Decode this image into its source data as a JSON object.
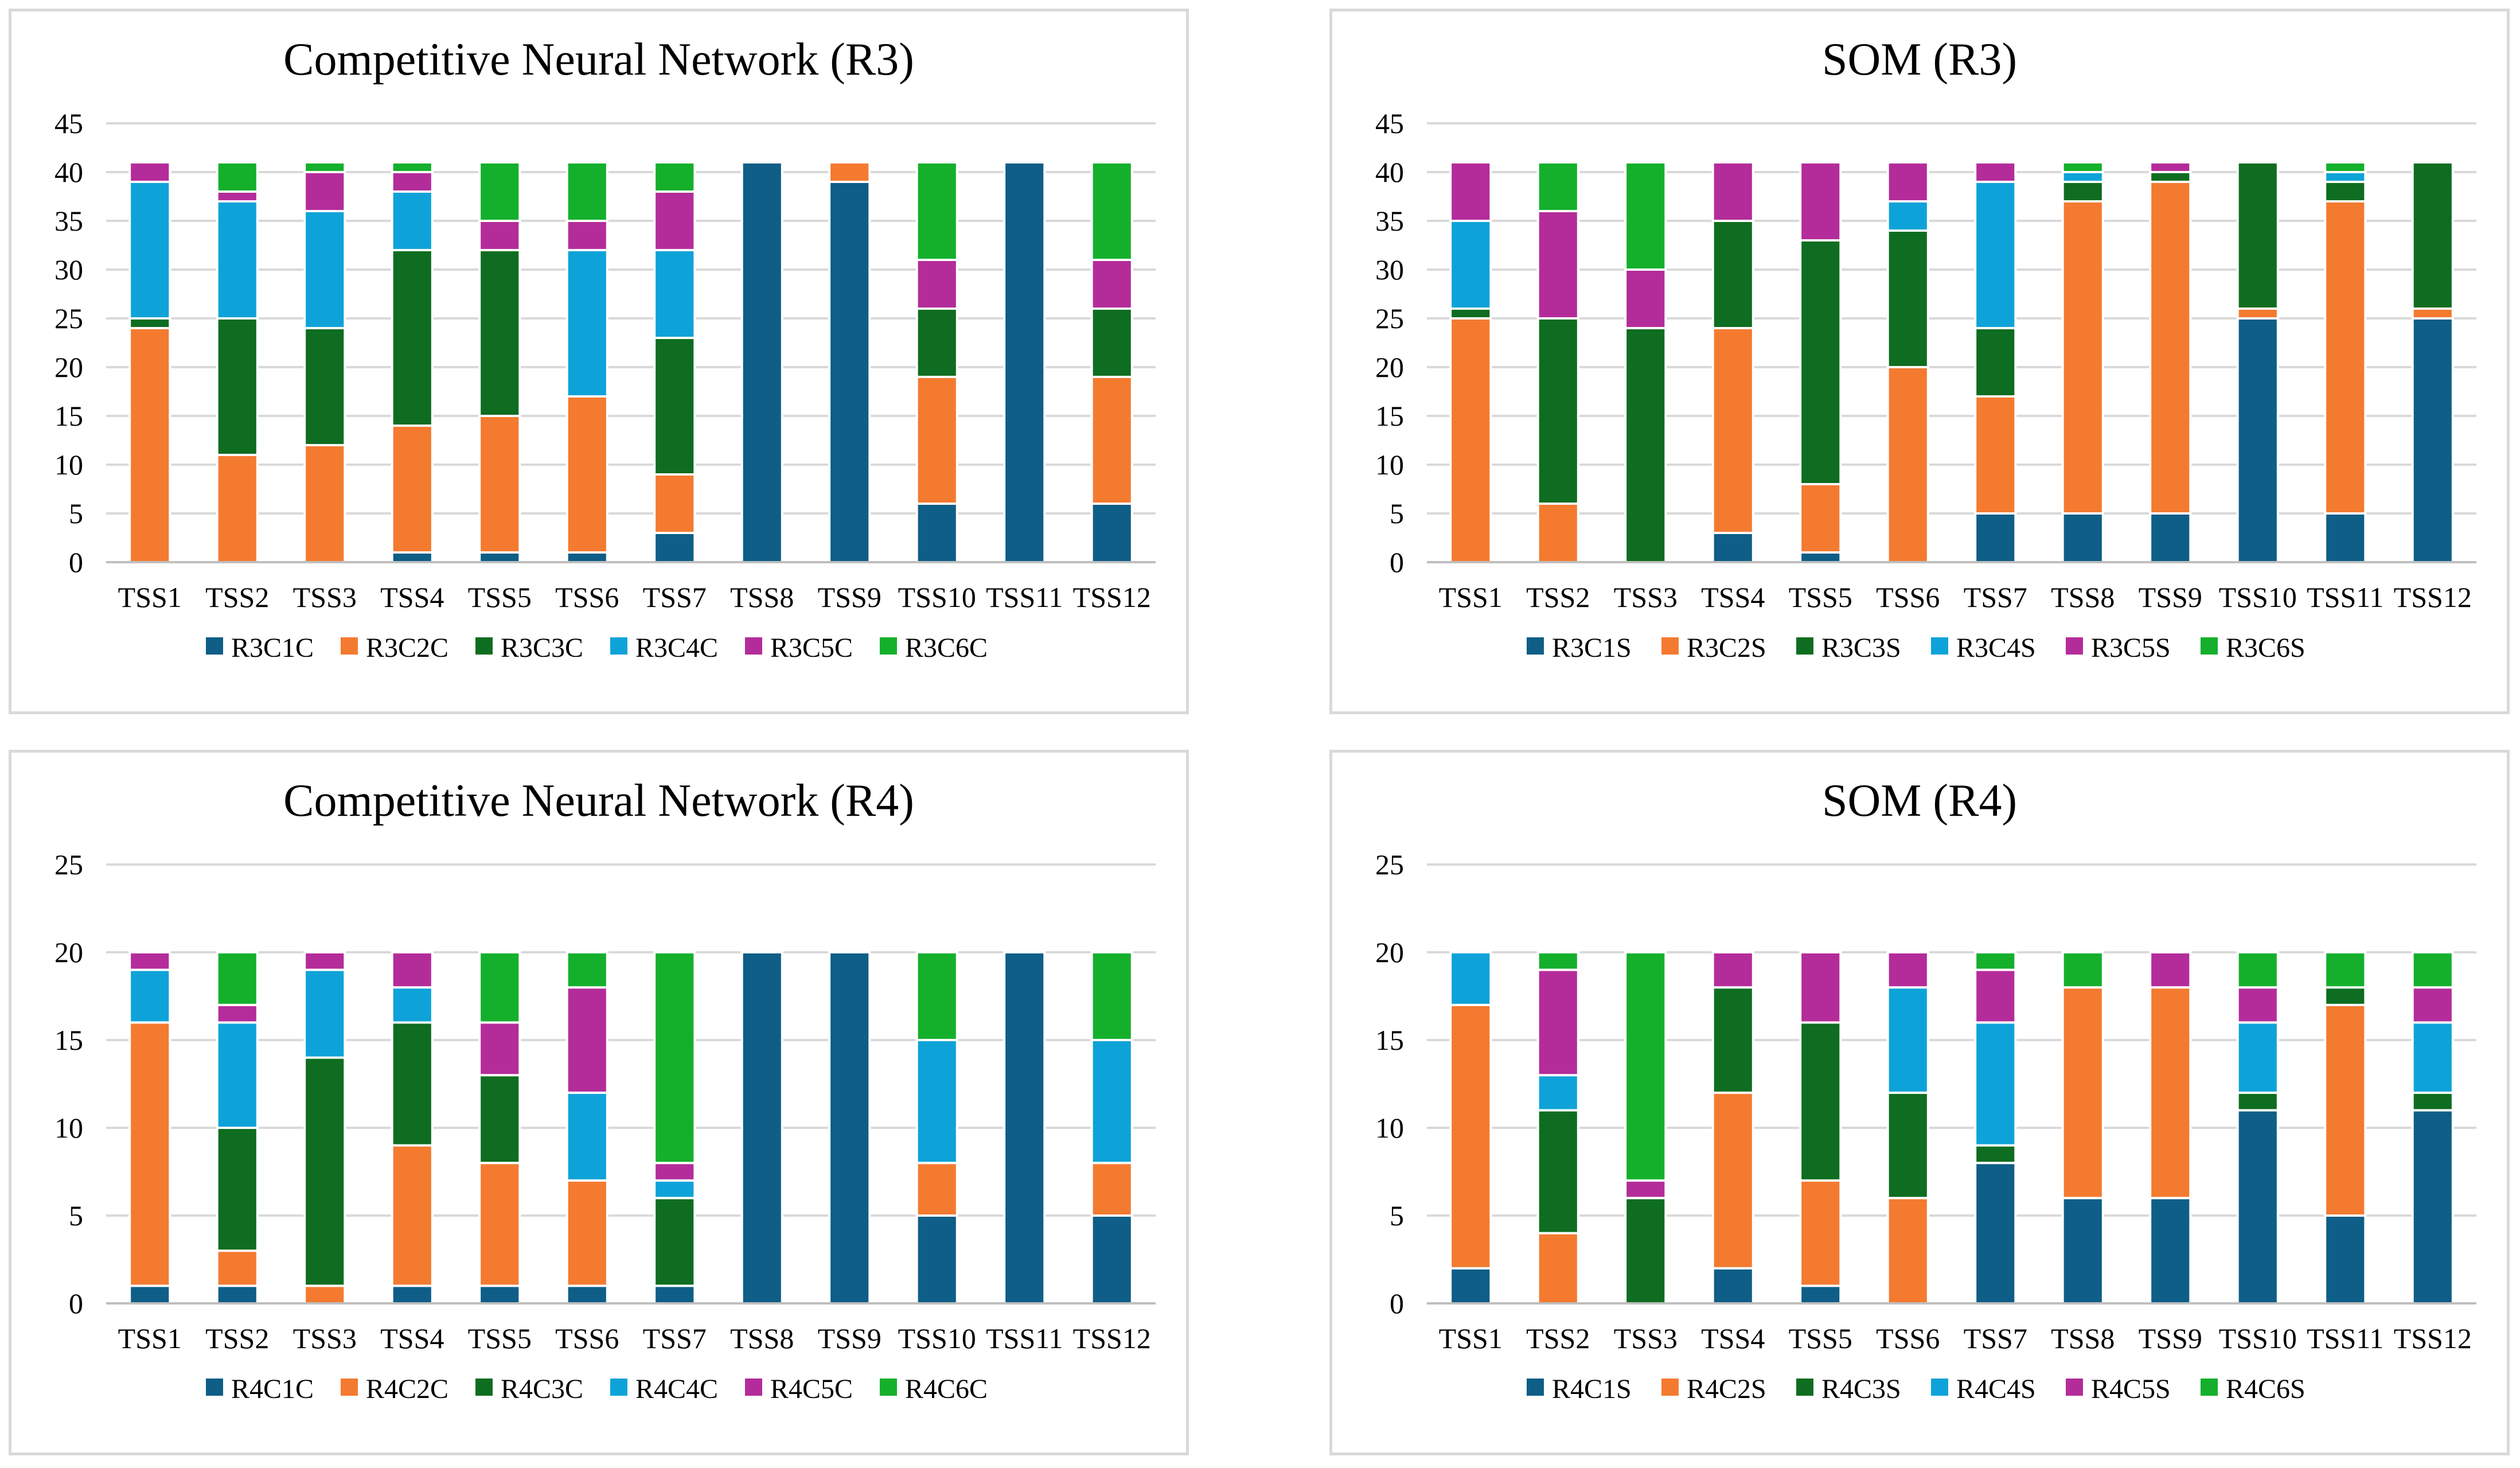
{
  "chart_data": [
    {
      "type": "bar",
      "stacked": true,
      "title": "Competitive Neural Network (R3)",
      "categories": [
        "TSS1",
        "TSS2",
        "TSS3",
        "TSS4",
        "TSS5",
        "TSS6",
        "TSS7",
        "TSS8",
        "TSS9",
        "TSS10",
        "TSS11",
        "TSS12"
      ],
      "ylim": [
        0,
        45
      ],
      "yticks": [
        0,
        5,
        10,
        15,
        20,
        25,
        30,
        35,
        40,
        45
      ],
      "grid": true,
      "legend_position": "bottom",
      "series": [
        {
          "name": "R3C1C",
          "color": "#0e5e87",
          "values": [
            0,
            0,
            0,
            1,
            1,
            1,
            3,
            41,
            39,
            6,
            41,
            6
          ]
        },
        {
          "name": "R3C2C",
          "color": "#f47a30",
          "values": [
            24,
            11,
            12,
            13,
            14,
            16,
            6,
            0,
            2,
            13,
            0,
            13
          ]
        },
        {
          "name": "R3C3C",
          "color": "#0e6d20",
          "values": [
            1,
            14,
            12,
            18,
            17,
            0,
            14,
            0,
            0,
            7,
            0,
            7
          ]
        },
        {
          "name": "R3C4C",
          "color": "#0ea3d8",
          "values": [
            14,
            12,
            12,
            6,
            0,
            15,
            9,
            0,
            0,
            0,
            0,
            0
          ]
        },
        {
          "name": "R3C5C",
          "color": "#b42c9a",
          "values": [
            2,
            1,
            4,
            2,
            3,
            3,
            6,
            0,
            0,
            5,
            0,
            5
          ]
        },
        {
          "name": "R3C6C",
          "color": "#14b02c",
          "values": [
            0,
            3,
            1,
            1,
            6,
            6,
            3,
            0,
            0,
            10,
            0,
            10
          ]
        }
      ]
    },
    {
      "type": "bar",
      "stacked": true,
      "title": "SOM (R3)",
      "categories": [
        "TSS1",
        "TSS2",
        "TSS3",
        "TSS4",
        "TSS5",
        "TSS6",
        "TSS7",
        "TSS8",
        "TSS9",
        "TSS10",
        "TSS11",
        "TSS12"
      ],
      "ylim": [
        0,
        45
      ],
      "yticks": [
        0,
        5,
        10,
        15,
        20,
        25,
        30,
        35,
        40,
        45
      ],
      "grid": true,
      "legend_position": "bottom",
      "series": [
        {
          "name": "R3C1S",
          "color": "#0e5e87",
          "values": [
            0,
            0,
            0,
            3,
            1,
            0,
            5,
            5,
            5,
            25,
            5,
            25
          ]
        },
        {
          "name": "R3C2S",
          "color": "#f47a30",
          "values": [
            25,
            6,
            0,
            21,
            7,
            20,
            12,
            32,
            34,
            1,
            32,
            1
          ]
        },
        {
          "name": "R3C3S",
          "color": "#0e6d20",
          "values": [
            1,
            19,
            24,
            11,
            25,
            14,
            7,
            2,
            1,
            15,
            2,
            15
          ]
        },
        {
          "name": "R3C4S",
          "color": "#0ea3d8",
          "values": [
            9,
            0,
            0,
            0,
            0,
            3,
            15,
            1,
            0,
            0,
            1,
            0
          ]
        },
        {
          "name": "R3C5S",
          "color": "#b42c9a",
          "values": [
            6,
            11,
            6,
            6,
            8,
            4,
            2,
            0,
            1,
            0,
            0,
            0
          ]
        },
        {
          "name": "R3C6S",
          "color": "#14b02c",
          "values": [
            0,
            5,
            11,
            0,
            0,
            0,
            0,
            1,
            0,
            0,
            1,
            0
          ]
        }
      ]
    },
    {
      "type": "bar",
      "stacked": true,
      "title": "Competitive Neural Network (R4)",
      "categories": [
        "TSS1",
        "TSS2",
        "TSS3",
        "TSS4",
        "TSS5",
        "TSS6",
        "TSS7",
        "TSS8",
        "TSS9",
        "TSS10",
        "TSS11",
        "TSS12"
      ],
      "ylim": [
        0,
        25
      ],
      "yticks": [
        0,
        5,
        10,
        15,
        20,
        25
      ],
      "grid": true,
      "legend_position": "bottom",
      "series": [
        {
          "name": "R4C1C",
          "color": "#0e5e87",
          "values": [
            1,
            1,
            0,
            1,
            1,
            1,
            1,
            20,
            20,
            5,
            20,
            5
          ]
        },
        {
          "name": "R4C2C",
          "color": "#f47a30",
          "values": [
            15,
            2,
            1,
            8,
            7,
            6,
            0,
            0,
            0,
            3,
            0,
            3
          ]
        },
        {
          "name": "R4C3C",
          "color": "#0e6d20",
          "values": [
            0,
            7,
            13,
            7,
            5,
            0,
            5,
            0,
            0,
            0,
            0,
            0
          ]
        },
        {
          "name": "R4C4C",
          "color": "#0ea3d8",
          "values": [
            3,
            6,
            5,
            2,
            0,
            5,
            1,
            0,
            0,
            7,
            0,
            7
          ]
        },
        {
          "name": "R4C5C",
          "color": "#b42c9a",
          "values": [
            1,
            1,
            1,
            2,
            3,
            6,
            1,
            0,
            0,
            0,
            0,
            0
          ]
        },
        {
          "name": "R4C6C",
          "color": "#14b02c",
          "values": [
            0,
            3,
            0,
            0,
            4,
            2,
            12,
            0,
            0,
            5,
            0,
            5
          ]
        }
      ]
    },
    {
      "type": "bar",
      "stacked": true,
      "title": "SOM (R4)",
      "categories": [
        "TSS1",
        "TSS2",
        "TSS3",
        "TSS4",
        "TSS5",
        "TSS6",
        "TSS7",
        "TSS8",
        "TSS9",
        "TSS10",
        "TSS11",
        "TSS12"
      ],
      "ylim": [
        0,
        25
      ],
      "yticks": [
        0,
        5,
        10,
        15,
        20,
        25
      ],
      "grid": true,
      "legend_position": "bottom",
      "series": [
        {
          "name": "R4C1S",
          "color": "#0e5e87",
          "values": [
            2,
            0,
            0,
            2,
            1,
            0,
            8,
            6,
            6,
            11,
            5,
            11
          ]
        },
        {
          "name": "R4C2S",
          "color": "#f47a30",
          "values": [
            15,
            4,
            0,
            10,
            6,
            6,
            0,
            12,
            12,
            0,
            12,
            0
          ]
        },
        {
          "name": "R4C3S",
          "color": "#0e6d20",
          "values": [
            0,
            7,
            6,
            6,
            9,
            6,
            1,
            0,
            0,
            1,
            1,
            1
          ]
        },
        {
          "name": "R4C4S",
          "color": "#0ea3d8",
          "values": [
            3,
            2,
            0,
            0,
            0,
            6,
            7,
            0,
            0,
            4,
            0,
            4
          ]
        },
        {
          "name": "R4C5S",
          "color": "#b42c9a",
          "values": [
            0,
            6,
            1,
            2,
            4,
            2,
            3,
            0,
            2,
            2,
            0,
            2
          ]
        },
        {
          "name": "R4C6S",
          "color": "#14b02c",
          "values": [
            0,
            1,
            13,
            0,
            0,
            0,
            1,
            2,
            0,
            2,
            2,
            2
          ]
        }
      ]
    }
  ]
}
